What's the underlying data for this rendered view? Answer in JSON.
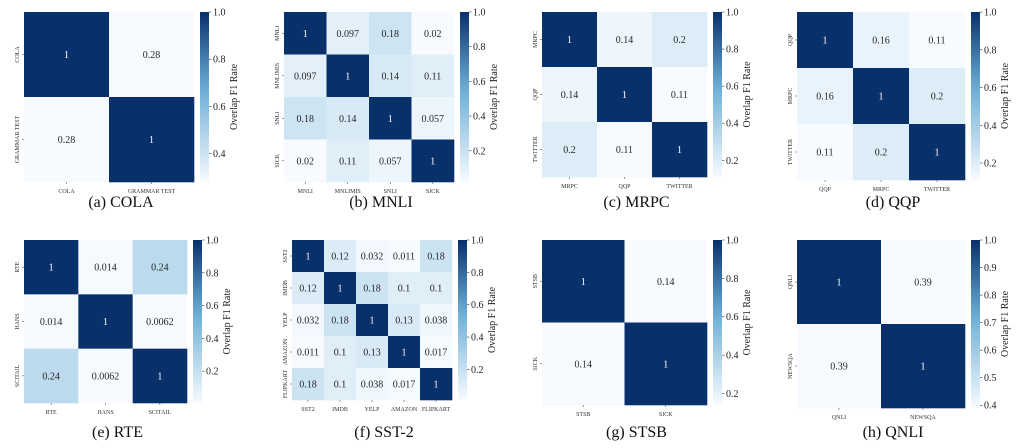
{
  "colors": {
    "low": "#f7fbff",
    "mid": "#6baed6",
    "high": "#08306b"
  },
  "chart_data": [
    {
      "type": "heatmap",
      "caption": "(a) COLA",
      "labels": [
        "COLA",
        "GRAMMAR TEST"
      ],
      "values": [
        [
          1,
          0.28
        ],
        [
          0.28,
          1
        ]
      ],
      "vmin": 0.28,
      "vmax": 1.0,
      "colorbar_ticks": [
        0.4,
        0.6,
        0.8,
        1.0
      ],
      "colorbar_tick_labels": [
        "0.4",
        "0.6",
        "0.8",
        "1.0"
      ],
      "colorbar_label": "Overlap F1 Rate"
    },
    {
      "type": "heatmap",
      "caption": "(b) MNLI",
      "labels": [
        "MNLI",
        "MNLIMIS",
        "SNLI",
        "SICK"
      ],
      "values": [
        [
          1,
          0.097,
          0.18,
          0.02
        ],
        [
          0.097,
          1,
          0.14,
          0.11
        ],
        [
          0.18,
          0.14,
          1,
          0.057
        ],
        [
          0.02,
          0.11,
          0.057,
          1
        ]
      ],
      "vmin": 0.02,
      "vmax": 1.0,
      "colorbar_ticks": [
        0.2,
        0.4,
        0.6,
        0.8,
        1.0
      ],
      "colorbar_tick_labels": [
        "0.2",
        "0.4",
        "0.6",
        "0.8",
        "1.0"
      ],
      "colorbar_label": "Overlap F1 Rate"
    },
    {
      "type": "heatmap",
      "caption": "(c) MRPC",
      "labels": [
        "MRPC",
        "QQP",
        "TWITTER"
      ],
      "values": [
        [
          1,
          0.14,
          0.2
        ],
        [
          0.14,
          1,
          0.11
        ],
        [
          0.2,
          0.11,
          1
        ]
      ],
      "vmin": 0.11,
      "vmax": 1.0,
      "colorbar_ticks": [
        0.2,
        0.4,
        0.6,
        0.8,
        1.0
      ],
      "colorbar_tick_labels": [
        "0.2",
        "0.4",
        "0.6",
        "0.8",
        "1.0"
      ],
      "colorbar_label": "Overlap F1 Rate"
    },
    {
      "type": "heatmap",
      "caption": "(d) QQP",
      "labels": [
        "QQP",
        "MRPC",
        "TWITTER"
      ],
      "values": [
        [
          1,
          0.16,
          0.11
        ],
        [
          0.16,
          1,
          0.2
        ],
        [
          0.11,
          0.2,
          1
        ]
      ],
      "vmin": 0.11,
      "vmax": 1.0,
      "colorbar_ticks": [
        0.2,
        0.4,
        0.6,
        0.8,
        1.0
      ],
      "colorbar_tick_labels": [
        "0.2",
        "0.4",
        "0.6",
        "0.8",
        "1.0"
      ],
      "colorbar_label": "Overlap F1 Rate"
    },
    {
      "type": "heatmap",
      "caption": "(e) RTE",
      "labels": [
        "RTE",
        "HANS",
        "SCITAIL"
      ],
      "values": [
        [
          1,
          0.014,
          0.24
        ],
        [
          0.014,
          1,
          0.0062
        ],
        [
          0.24,
          0.0062,
          1
        ]
      ],
      "vmin": 0.0062,
      "vmax": 1.0,
      "colorbar_ticks": [
        0.2,
        0.4,
        0.6,
        0.8,
        1.0
      ],
      "colorbar_tick_labels": [
        "0.2",
        "0.4",
        "0.6",
        "0.8",
        "1.0"
      ],
      "colorbar_label": "Overlap F1 Rate"
    },
    {
      "type": "heatmap",
      "caption": "(f) SST-2",
      "labels": [
        "SST2",
        "IMDB",
        "YELP",
        "AMAZON",
        "FLIPKART"
      ],
      "values": [
        [
          1,
          0.12,
          0.032,
          0.011,
          0.18
        ],
        [
          0.12,
          1,
          0.18,
          0.1,
          0.1
        ],
        [
          0.032,
          0.18,
          1,
          0.13,
          0.038
        ],
        [
          0.011,
          0.1,
          0.13,
          1,
          0.017
        ],
        [
          0.18,
          0.1,
          0.038,
          0.017,
          1
        ]
      ],
      "vmin": 0.011,
      "vmax": 1.0,
      "colorbar_ticks": [
        0.2,
        0.4,
        0.6,
        0.8,
        1.0
      ],
      "colorbar_tick_labels": [
        "0.2",
        "0.4",
        "0.6",
        "0.8",
        "1.0"
      ],
      "colorbar_label": "Overlap F1 Rate"
    },
    {
      "type": "heatmap",
      "caption": "(g) STSB",
      "labels": [
        "STSB",
        "SICK"
      ],
      "values": [
        [
          1,
          0.14
        ],
        [
          0.14,
          1
        ]
      ],
      "vmin": 0.14,
      "vmax": 1.0,
      "colorbar_ticks": [
        0.2,
        0.4,
        0.6,
        0.8,
        1.0
      ],
      "colorbar_tick_labels": [
        "0.2",
        "0.4",
        "0.6",
        "0.8",
        "1.0"
      ],
      "colorbar_label": "Overlap F1 Rate"
    },
    {
      "type": "heatmap",
      "caption": "(h) QNLI",
      "labels": [
        "QNLI",
        "NEWSQA"
      ],
      "values": [
        [
          1,
          0.39
        ],
        [
          0.39,
          1
        ]
      ],
      "vmin": 0.39,
      "vmax": 1.0,
      "colorbar_ticks": [
        0.4,
        0.5,
        0.6,
        0.7,
        0.8,
        0.9,
        1.0
      ],
      "colorbar_tick_labels": [
        "0.4",
        "0.5",
        "0.6",
        "0.7",
        "0.8",
        "0.9",
        "1.0"
      ],
      "colorbar_label": "Overlap F1 Rate"
    }
  ]
}
